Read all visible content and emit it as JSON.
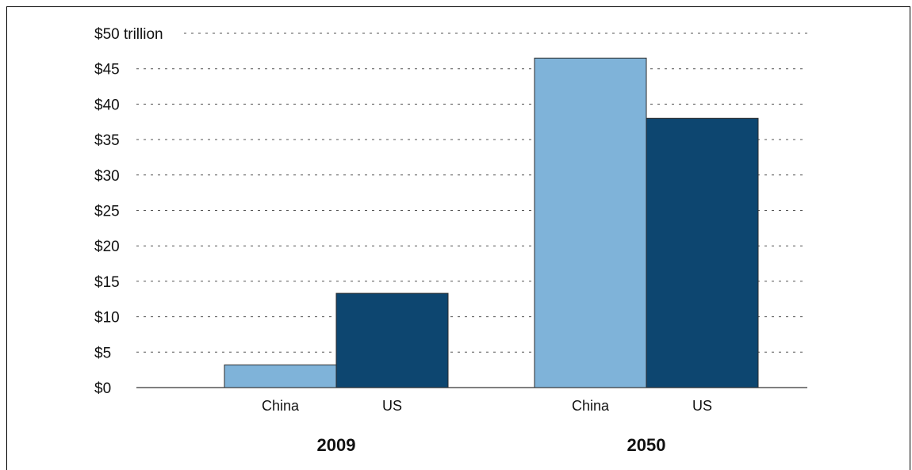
{
  "chart_data": {
    "type": "bar",
    "title": "",
    "xlabel": "",
    "ylabel": "",
    "ylim": [
      0,
      50
    ],
    "yticks": [
      0,
      5,
      10,
      15,
      20,
      25,
      30,
      35,
      40,
      45,
      50
    ],
    "ytick_labels": [
      "$0",
      "$5",
      "$10",
      "$15",
      "$20",
      "$25",
      "$30",
      "$35",
      "$40",
      "$45",
      "$50 trillion"
    ],
    "groups": [
      "2009",
      "2050"
    ],
    "categories": [
      "China",
      "US"
    ],
    "series": [
      {
        "values": [
          3.2,
          46.5
        ],
        "color": "#7fb3d9"
      },
      {
        "values": [
          13.3,
          38.0
        ],
        "color": "#0d4670"
      }
    ],
    "grid": true
  }
}
